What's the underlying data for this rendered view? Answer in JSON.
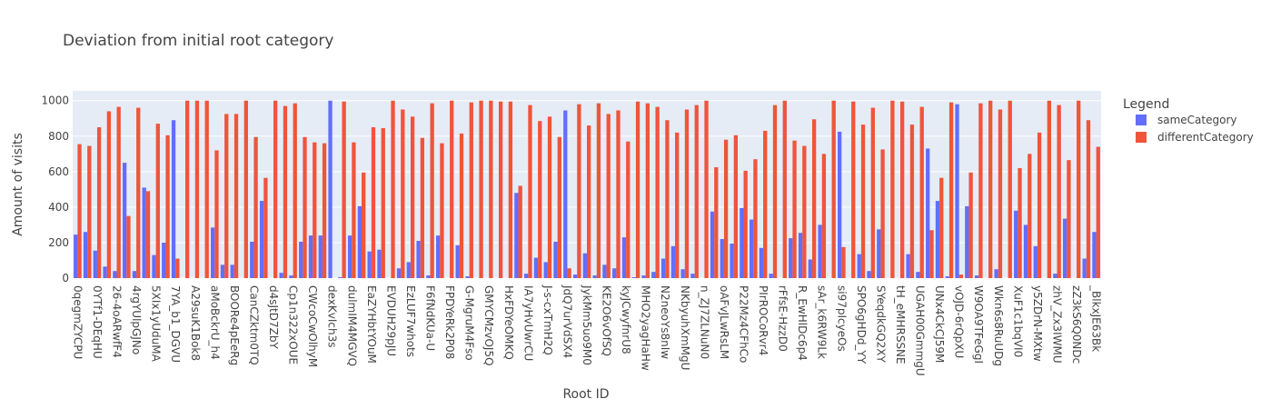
{
  "chart_data": {
    "type": "bar",
    "title": "Deviation from initial root category",
    "x_label": "Root ID",
    "y_label": "Amount of visits",
    "legend_title": "Legend",
    "legend": "right",
    "grid": true,
    "categories": [
      "0qegmZYCPU",
      null,
      "0YTf1-DEqHU",
      null,
      "26-4oARwfF4",
      null,
      "4rgYUlpGJNo",
      null,
      "5XIx1yUduMA",
      null,
      "7YA_b1_DGVU",
      null,
      "A29suK1Bok8",
      null,
      "aMoBckrU_h4",
      null,
      "BOORe4pEeRg",
      null,
      "CanCZktm0TQ",
      null,
      "d4sJtD7ZbY",
      null,
      "Cp1n322xOUE",
      null,
      "CWcoCwOlhyM",
      null,
      "dexKvIch3s",
      null,
      "dulmIM4MGVQ",
      null,
      "EaZYHbtYOuM",
      null,
      "EVDUH29pJU",
      null,
      "EzLUF7whots",
      null,
      "F6fNdKUa-U",
      null,
      "FPDYeRk2P08",
      null,
      "G-MgruM4Fso",
      null,
      "GMYCMzvOJ5Q",
      null,
      "HxFDYeOMKQ",
      null,
      "IA7yHvUwrCU",
      null,
      "J-s-cxTmH2Q",
      null,
      "JdQ7urVdSX4",
      null,
      "JykMm5uo9M0",
      null,
      "KE2O6vOfSQ",
      null,
      "kyJCwyfnrU8",
      null,
      "MHO2yagHaHw",
      null,
      "N2neoYs8nIw",
      null,
      "NKbyuhXmMgU",
      null,
      "n_ZJ7ZLNuN0",
      null,
      "oAFvJLwRsLM",
      null,
      "P22Mz4CFhCo",
      null,
      "PIrROCoRvr4",
      null,
      "rFfsE-HzzD0",
      null,
      "R_EwHlDc6p4",
      null,
      "sAr_k6RW9Lk",
      null,
      "si97pIcyeOs",
      null,
      "SPO6gHDd_YY",
      null,
      "SYeqdkGQ2XY",
      null,
      "tH_eMHRSSNE",
      null,
      "UGAH00GmmgU",
      null,
      "UNx4CkCJ59M",
      null,
      "vOJD-6rQpXU",
      null,
      "W9OA9TFeGgI",
      null,
      "Wkn6s8RuUDg",
      null,
      "XuF1c1bqVI0",
      null,
      "y5ZDrN-MXtw",
      null,
      "zhV_Zx3IWMU",
      null,
      "zZ3kS6Q0NDc",
      null,
      "_BlkxJE63Bk"
    ],
    "series": [
      {
        "name": "sameCategory",
        "color": "#636efa",
        "values": [
          245,
          260,
          155,
          65,
          40,
          650,
          40,
          510,
          130,
          200,
          890,
          0,
          0,
          0,
          285,
          75,
          75,
          0,
          205,
          435,
          0,
          30,
          15,
          205,
          240,
          240,
          1000,
          5,
          240,
          405,
          150,
          160,
          0,
          55,
          90,
          210,
          15,
          240,
          0,
          185,
          10,
          0,
          0,
          0,
          0,
          480,
          25,
          115,
          90,
          205,
          945,
          20,
          140,
          15,
          75,
          55,
          230,
          5,
          15,
          35,
          110,
          180,
          50,
          25,
          0,
          375,
          220,
          195,
          395,
          330,
          170,
          25,
          0,
          225,
          255,
          105,
          300,
          0,
          825,
          0,
          135,
          40,
          275,
          0,
          0,
          135,
          35,
          730,
          435,
          10,
          980,
          405,
          15,
          0,
          50,
          0,
          380,
          300,
          180,
          0,
          25,
          335,
          0,
          110,
          260
        ]
      },
      {
        "name": "differentCategory",
        "color": "#EF553B",
        "values": [
          755,
          745,
          850,
          940,
          965,
          350,
          960,
          490,
          870,
          805,
          110,
          1000,
          1000,
          1000,
          720,
          925,
          925,
          1000,
          795,
          565,
          1000,
          970,
          985,
          795,
          765,
          760,
          0,
          995,
          765,
          595,
          850,
          845,
          1000,
          950,
          910,
          790,
          985,
          760,
          1000,
          815,
          990,
          1000,
          1000,
          995,
          995,
          520,
          975,
          885,
          910,
          795,
          55,
          980,
          860,
          985,
          925,
          945,
          770,
          995,
          985,
          965,
          890,
          820,
          950,
          975,
          1000,
          625,
          780,
          805,
          605,
          670,
          830,
          975,
          1000,
          775,
          745,
          895,
          700,
          1000,
          175,
          995,
          865,
          960,
          725,
          1000,
          995,
          865,
          965,
          270,
          565,
          990,
          20,
          595,
          985,
          1000,
          950,
          1000,
          620,
          700,
          820,
          1000,
          975,
          665,
          1000,
          890,
          740
        ]
      }
    ],
    "ylim": [
      0,
      1055
    ],
    "yticks": [
      0,
      200,
      400,
      600,
      800,
      1000
    ]
  }
}
